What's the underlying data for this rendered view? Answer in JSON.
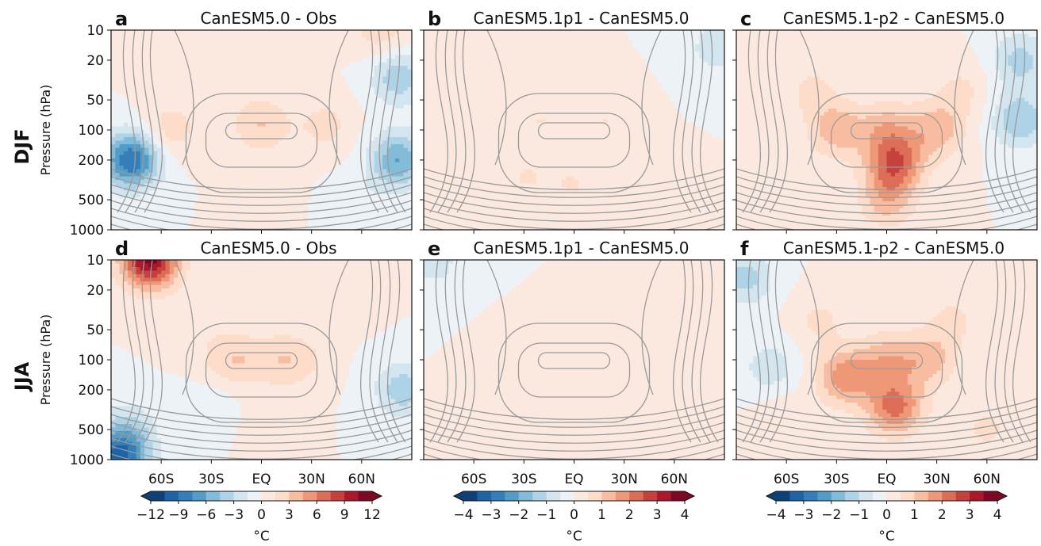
{
  "figure": {
    "row_labels": [
      "DJF",
      "JJA"
    ],
    "y_axis_label": "Pressure (hPa)",
    "colorbar_unit": "°C"
  },
  "chart_data": [
    {
      "type": "heatmap",
      "panel": "a",
      "title": "CanESM5.0 - Obs",
      "season": "DJF",
      "ylabel": "Pressure (hPa)",
      "y_ticks": [
        "10",
        "20",
        "50",
        "100",
        "200",
        "500",
        "1000"
      ],
      "y_scale": "log",
      "y_inverted": true,
      "x_ticks": [
        "60S",
        "30S",
        "EQ",
        "30N",
        "60N"
      ],
      "xlim": [
        -90,
        90
      ],
      "ylim": [
        1000,
        10
      ],
      "colorbar_ticks": [
        "−12",
        "−9",
        "−6",
        "−3",
        "0",
        "3",
        "6",
        "9",
        "12"
      ],
      "colorbar_range": [
        -12,
        12
      ],
      "colorbar_unit": "°C",
      "contours": "climatology (gray lines)",
      "blobs": [
        [
          -78,
          10,
          1.5
        ],
        [
          72,
          10,
          2.5
        ],
        [
          -78,
          200,
          -9
        ],
        [
          82,
          200,
          -6
        ],
        [
          82,
          30,
          -4
        ],
        [
          -55,
          100,
          2.5
        ],
        [
          0,
          90,
          3
        ],
        [
          38,
          90,
          2
        ],
        [
          0,
          450,
          0.6
        ],
        [
          -15,
          30,
          0.5
        ],
        [
          60,
          500,
          -1
        ]
      ]
    },
    {
      "type": "heatmap",
      "panel": "b",
      "title": "CanESM5.1p1 - CanESM5.0",
      "season": "DJF",
      "y_ticks": [
        "10",
        "20",
        "50",
        "100",
        "200",
        "500",
        "1000"
      ],
      "y_scale": "log",
      "y_inverted": true,
      "x_ticks": [
        "60S",
        "30S",
        "EQ",
        "30N",
        "60N"
      ],
      "xlim": [
        -90,
        90
      ],
      "ylim": [
        1000,
        10
      ],
      "colorbar_ticks": [
        "−4",
        "−3",
        "−2",
        "−1",
        "0",
        "1",
        "2",
        "3",
        "4"
      ],
      "colorbar_range": [
        -4,
        4
      ],
      "colorbar_unit": "°C",
      "contours": "climatology (gray lines)",
      "blobs": [
        [
          85,
          15,
          -0.8
        ],
        [
          -20,
          80,
          0.5
        ],
        [
          20,
          80,
          0.5
        ],
        [
          0,
          350,
          0.5
        ],
        [
          -30,
          300,
          0.5
        ],
        [
          40,
          350,
          0.5
        ]
      ]
    },
    {
      "type": "heatmap",
      "panel": "c",
      "title": "CanESM5.1-p2 - CanESM5.0",
      "season": "DJF",
      "y_ticks": [
        "10",
        "20",
        "50",
        "100",
        "200",
        "500",
        "1000"
      ],
      "y_scale": "log",
      "y_inverted": true,
      "x_ticks": [
        "60S",
        "30S",
        "EQ",
        "30N",
        "60N"
      ],
      "xlim": [
        -90,
        90
      ],
      "ylim": [
        1000,
        10
      ],
      "colorbar_ticks": [
        "−4",
        "−3",
        "−2",
        "−1",
        "0",
        "1",
        "2",
        "3",
        "4"
      ],
      "colorbar_range": [
        -4,
        4
      ],
      "colorbar_unit": "°C",
      "contours": "climatology (gray lines)",
      "blobs": [
        [
          80,
          80,
          -1.5
        ],
        [
          80,
          20,
          -1.2
        ],
        [
          5,
          220,
          2.2
        ],
        [
          -30,
          100,
          1.3
        ],
        [
          30,
          100,
          1.3
        ],
        [
          0,
          100,
          1.2
        ],
        [
          0,
          500,
          1.2
        ],
        [
          -45,
          40,
          0.6
        ],
        [
          45,
          40,
          0.6
        ],
        [
          -60,
          400,
          0.5
        ]
      ]
    },
    {
      "type": "heatmap",
      "panel": "d",
      "title": "CanESM5.0 - Obs",
      "season": "JJA",
      "ylabel": "Pressure (hPa)",
      "y_ticks": [
        "10",
        "20",
        "50",
        "100",
        "200",
        "500",
        "1000"
      ],
      "y_scale": "log",
      "y_inverted": true,
      "x_ticks": [
        "60S",
        "30S",
        "EQ",
        "30N",
        "60N"
      ],
      "xlim": [
        -90,
        90
      ],
      "ylim": [
        1000,
        10
      ],
      "colorbar_ticks": [
        "−12",
        "−9",
        "−6",
        "−3",
        "0",
        "3",
        "6",
        "9",
        "12"
      ],
      "colorbar_range": [
        -12,
        12
      ],
      "colorbar_unit": "°C",
      "contours": "climatology (gray lines)",
      "blobs": [
        [
          -67,
          10,
          11
        ],
        [
          -80,
          500,
          -3
        ],
        [
          -85,
          1000,
          -9
        ],
        [
          85,
          200,
          -4
        ],
        [
          -20,
          100,
          2.5
        ],
        [
          20,
          100,
          2.5
        ],
        [
          0,
          100,
          1.6
        ],
        [
          50,
          20,
          1.5
        ],
        [
          -40,
          40,
          1
        ],
        [
          -30,
          300,
          -1.2
        ],
        [
          0,
          450,
          0.6
        ]
      ]
    },
    {
      "type": "heatmap",
      "panel": "e",
      "title": "CanESM5.1p1 - CanESM5.0",
      "season": "JJA",
      "y_ticks": [
        "10",
        "20",
        "50",
        "100",
        "200",
        "500",
        "1000"
      ],
      "y_scale": "log",
      "y_inverted": true,
      "x_ticks": [
        "60S",
        "30S",
        "EQ",
        "30N",
        "60N"
      ],
      "xlim": [
        -90,
        90
      ],
      "ylim": [
        1000,
        10
      ],
      "colorbar_ticks": [
        "−4",
        "−3",
        "−2",
        "−1",
        "0",
        "1",
        "2",
        "3",
        "4"
      ],
      "colorbar_range": [
        -4,
        4
      ],
      "colorbar_unit": "°C",
      "contours": "climatology (gray lines)",
      "blobs": [
        [
          -85,
          10,
          -0.8
        ],
        [
          0,
          400,
          0.5
        ],
        [
          -30,
          120,
          0.4
        ],
        [
          30,
          120,
          0.4
        ]
      ]
    },
    {
      "type": "heatmap",
      "panel": "f",
      "title": "CanESM5.1-p2 - CanESM5.0",
      "season": "JJA",
      "y_ticks": [
        "10",
        "20",
        "50",
        "100",
        "200",
        "500",
        "1000"
      ],
      "y_scale": "log",
      "y_inverted": true,
      "x_ticks": [
        "60S",
        "30S",
        "EQ",
        "30N",
        "60N"
      ],
      "xlim": [
        -90,
        90
      ],
      "ylim": [
        1000,
        10
      ],
      "colorbar_ticks": [
        "−4",
        "−3",
        "−2",
        "−1",
        "0",
        "1",
        "2",
        "3",
        "4"
      ],
      "colorbar_range": [
        -4,
        4
      ],
      "colorbar_unit": "°C",
      "contours": "climatology (gray lines)",
      "blobs": [
        [
          -85,
          15,
          -1.2
        ],
        [
          -70,
          120,
          -0.8
        ],
        [
          -25,
          150,
          1.8
        ],
        [
          5,
          300,
          2.2
        ],
        [
          25,
          100,
          1.2
        ],
        [
          0,
          100,
          1.2
        ],
        [
          -40,
          40,
          0.6
        ],
        [
          40,
          40,
          0.6
        ],
        [
          60,
          500,
          0.6
        ],
        [
          -60,
          400,
          0.5
        ]
      ]
    }
  ]
}
